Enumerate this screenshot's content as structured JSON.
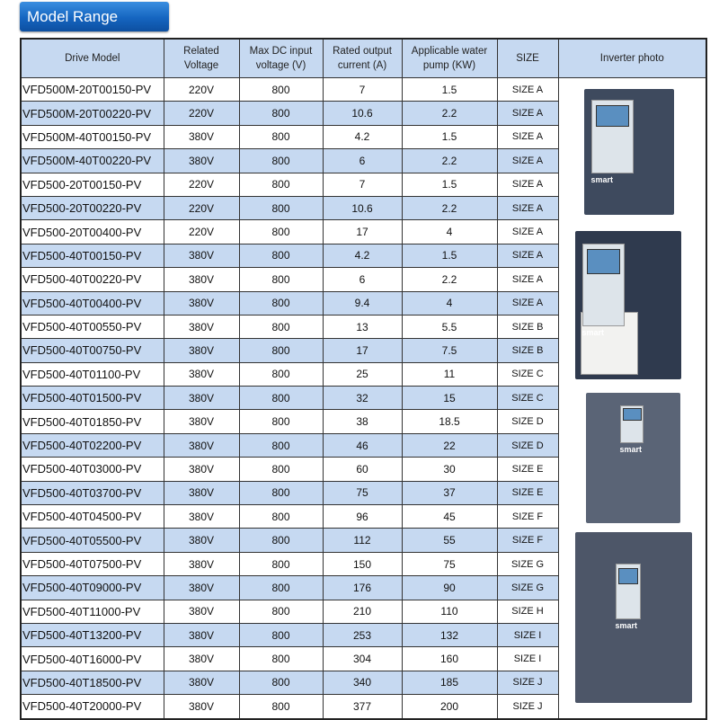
{
  "title": "Model Range",
  "headers": [
    "Drive Model",
    "Related Voltage",
    "Max DC input voltage (V)",
    "Rated output current (A)",
    "Applicable water pump (KW)",
    "SIZE",
    "Inverter photo"
  ],
  "rows": [
    [
      "VFD500M-20T00150-PV",
      "220V",
      "800",
      "7",
      "1.5",
      "SIZE A"
    ],
    [
      "VFD500M-20T00220-PV",
      "220V",
      "800",
      "10.6",
      "2.2",
      "SIZE A"
    ],
    [
      "VFD500M-40T00150-PV",
      "380V",
      "800",
      "4.2",
      "1.5",
      "SIZE A"
    ],
    [
      "VFD500M-40T00220-PV",
      "380V",
      "800",
      "6",
      "2.2",
      "SIZE A"
    ],
    [
      "VFD500-20T00150-PV",
      "220V",
      "800",
      "7",
      "1.5",
      "SIZE A"
    ],
    [
      "VFD500-20T00220-PV",
      "220V",
      "800",
      "10.6",
      "2.2",
      "SIZE A"
    ],
    [
      "VFD500-20T00400-PV",
      "220V",
      "800",
      "17",
      "4",
      "SIZE A"
    ],
    [
      "VFD500-40T00150-PV",
      "380V",
      "800",
      "4.2",
      "1.5",
      "SIZE A"
    ],
    [
      "VFD500-40T00220-PV",
      "380V",
      "800",
      "6",
      "2.2",
      "SIZE A"
    ],
    [
      "VFD500-40T00400-PV",
      "380V",
      "800",
      "9.4",
      "4",
      "SIZE A"
    ],
    [
      "VFD500-40T00550-PV",
      "380V",
      "800",
      "13",
      "5.5",
      "SIZE B"
    ],
    [
      "VFD500-40T00750-PV",
      "380V",
      "800",
      "17",
      "7.5",
      "SIZE B"
    ],
    [
      "VFD500-40T01100-PV",
      "380V",
      "800",
      "25",
      "11",
      "SIZE C"
    ],
    [
      "VFD500-40T01500-PV",
      "380V",
      "800",
      "32",
      "15",
      "SIZE C"
    ],
    [
      "VFD500-40T01850-PV",
      "380V",
      "800",
      "38",
      "18.5",
      "SIZE D"
    ],
    [
      "VFD500-40T02200-PV",
      "380V",
      "800",
      "46",
      "22",
      "SIZE D"
    ],
    [
      "VFD500-40T03000-PV",
      "380V",
      "800",
      "60",
      "30",
      "SIZE E"
    ],
    [
      "VFD500-40T03700-PV",
      "380V",
      "800",
      "75",
      "37",
      "SIZE E"
    ],
    [
      "VFD500-40T04500-PV",
      "380V",
      "800",
      "96",
      "45",
      "SIZE F"
    ],
    [
      "VFD500-40T05500-PV",
      "380V",
      "800",
      "112",
      "55",
      "SIZE F"
    ],
    [
      "VFD500-40T07500-PV",
      "380V",
      "800",
      "150",
      "75",
      "SIZE G"
    ],
    [
      "VFD500-40T09000-PV",
      "380V",
      "800",
      "176",
      "90",
      "SIZE G"
    ],
    [
      "VFD500-40T11000-PV",
      "380V",
      "800",
      "210",
      "110",
      "SIZE H"
    ],
    [
      "VFD500-40T13200-PV",
      "380V",
      "800",
      "253",
      "132",
      "SIZE I"
    ],
    [
      "VFD500-40T16000-PV",
      "380V",
      "800",
      "304",
      "160",
      "SIZE I"
    ],
    [
      "VFD500-40T18500-PV",
      "380V",
      "800",
      "340",
      "185",
      "SIZE J"
    ],
    [
      "VFD500-40T20000-PV",
      "380V",
      "800",
      "377",
      "200",
      "SIZE J"
    ]
  ],
  "photo_logo": "smart",
  "colors": {
    "header_bg": "#c6d9f1",
    "title_bg": "#1565c0",
    "inverter_body": "#3e4a5e"
  }
}
